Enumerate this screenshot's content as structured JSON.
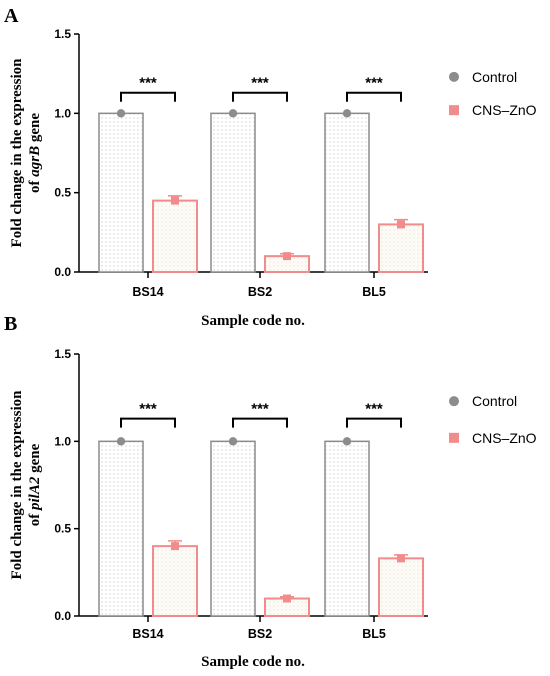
{
  "colors": {
    "control": "#8c8c8c",
    "treatment": "#f28b8b",
    "dot_fill_control": "#c8c8c8",
    "dot_fill_treatment": "#f0eadf"
  },
  "chart_data": [
    {
      "type": "bar",
      "panel": "A",
      "categories": [
        "BS14",
        "BS2",
        "BL5"
      ],
      "series": [
        {
          "name": "Control",
          "values": [
            1.0,
            1.0,
            1.0
          ]
        },
        {
          "name": "CNS–ZnO",
          "values": [
            0.45,
            0.1,
            0.3
          ],
          "errors": [
            0.03,
            0.015,
            0.03
          ]
        }
      ],
      "significance": [
        "***",
        "***",
        "***"
      ],
      "ylabel_line1": "Fold change in the expression",
      "ylabel_prefix": "of ",
      "ylabel_gene": "agrB",
      "ylabel_suffix": " gene",
      "xlabel": "Sample code no.",
      "ylim": [
        0,
        1.5
      ],
      "yticks": [
        "0.0",
        "0.5",
        "1.0",
        "1.5"
      ],
      "legend_position": "right",
      "grid": false
    },
    {
      "type": "bar",
      "panel": "B",
      "categories": [
        "BS14",
        "BS2",
        "BL5"
      ],
      "series": [
        {
          "name": "Control",
          "values": [
            1.0,
            1.0,
            1.0
          ]
        },
        {
          "name": "CNS–ZnO",
          "values": [
            0.4,
            0.1,
            0.33
          ],
          "errors": [
            0.03,
            0.01,
            0.02
          ]
        }
      ],
      "significance": [
        "***",
        "***",
        "***"
      ],
      "ylabel_line1": "Fold change in the expression",
      "ylabel_prefix": "of ",
      "ylabel_gene": "pilA2",
      "ylabel_suffix": " gene",
      "xlabel": "Sample code no.",
      "ylim": [
        0,
        1.5
      ],
      "yticks": [
        "0.0",
        "0.5",
        "1.0",
        "1.5"
      ],
      "legend_position": "right",
      "grid": false
    }
  ]
}
